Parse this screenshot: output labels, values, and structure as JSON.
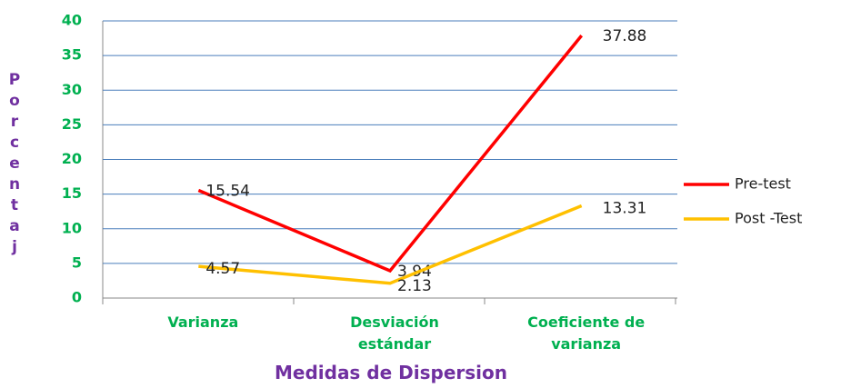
{
  "chart_data": {
    "type": "line",
    "categories": [
      "Varianza",
      "Desviación estándar",
      "Coeficiente de varianza"
    ],
    "series": [
      {
        "name": "Pre-test",
        "color": "#ff0000",
        "values": [
          15.54,
          3.94,
          37.88
        ]
      },
      {
        "name": "Post -Test",
        "color": "#ffc000",
        "values": [
          4.57,
          2.13,
          13.31
        ]
      }
    ],
    "ylim": [
      0,
      40
    ],
    "yticks": [
      0,
      5,
      10,
      15,
      20,
      25,
      30,
      35,
      40
    ],
    "grid": true,
    "y_label": "Porcentaj",
    "x_label": "Medidas de Dispersion",
    "legend": "right"
  }
}
